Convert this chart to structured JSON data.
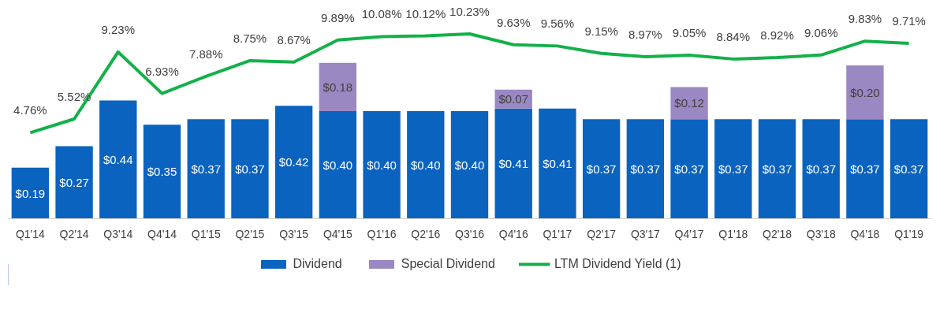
{
  "chart_data": {
    "type": "bar",
    "stacked": true,
    "categories": [
      "Q1'14",
      "Q2'14",
      "Q3'14",
      "Q4'14",
      "Q1'15",
      "Q2'15",
      "Q3'15",
      "Q4'15",
      "Q1'16",
      "Q2'16",
      "Q3'16",
      "Q4'16",
      "Q1'17",
      "Q2'17",
      "Q3'17",
      "Q4'17",
      "Q1'18",
      "Q2'18",
      "Q3'18",
      "Q4'18",
      "Q1'19"
    ],
    "series": [
      {
        "name": "Dividend",
        "color": "#0b63c0",
        "values": [
          0.19,
          0.27,
          0.44,
          0.35,
          0.37,
          0.37,
          0.42,
          0.4,
          0.4,
          0.4,
          0.4,
          0.41,
          0.41,
          0.37,
          0.37,
          0.37,
          0.37,
          0.37,
          0.37,
          0.37,
          0.37
        ],
        "value_labels": [
          "$0.19",
          "$0.27",
          "$0.44",
          "$0.35",
          "$0.37",
          "$0.37",
          "$0.42",
          "$0.40",
          "$0.40",
          "$0.40",
          "$0.40",
          "$0.41",
          "$0.41",
          "$0.37",
          "$0.37",
          "$0.37",
          "$0.37",
          "$0.37",
          "$0.37",
          "$0.37",
          "$0.37"
        ]
      },
      {
        "name": "Special Dividend",
        "color": "#9a88c2",
        "values": [
          null,
          null,
          null,
          null,
          null,
          null,
          null,
          0.18,
          null,
          null,
          null,
          0.07,
          null,
          null,
          null,
          0.12,
          null,
          null,
          null,
          0.2,
          null
        ],
        "value_labels": [
          null,
          null,
          null,
          null,
          null,
          null,
          null,
          "$0.18",
          null,
          null,
          null,
          "$0.07",
          null,
          null,
          null,
          "$0.12",
          null,
          null,
          null,
          "$0.20",
          null
        ]
      },
      {
        "name": "LTM Dividend Yield (1)",
        "type": "line",
        "axis": "y2",
        "color": "#14b04a",
        "values": [
          4.76,
          5.52,
          9.23,
          6.93,
          7.88,
          8.75,
          8.67,
          9.89,
          10.08,
          10.12,
          10.23,
          9.63,
          9.56,
          9.15,
          8.97,
          9.05,
          8.84,
          8.92,
          9.06,
          9.83,
          9.71
        ],
        "value_labels": [
          "4.76%",
          "5.52%",
          "9.23%",
          "6.93%",
          "7.88%",
          "8.75%",
          "8.67%",
          "9.89%",
          "10.08%",
          "10.12%",
          "10.23%",
          "9.63%",
          "9.56%",
          "9.15%",
          "8.97%",
          "9.05%",
          "8.84%",
          "8.92%",
          "9.06%",
          "9.83%",
          "9.71%"
        ]
      }
    ],
    "tick_labels": "x",
    "legend": "bottom",
    "grid": false,
    "marker": "none",
    "line_style": "solid"
  }
}
